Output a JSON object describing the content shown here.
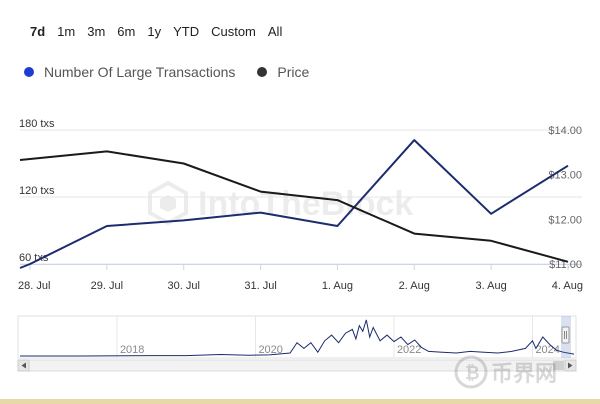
{
  "range_selector": {
    "buttons": [
      {
        "label": "7d",
        "active": true
      },
      {
        "label": "1m",
        "active": false
      },
      {
        "label": "3m",
        "active": false
      },
      {
        "label": "6m",
        "active": false
      },
      {
        "label": "1y",
        "active": false
      },
      {
        "label": "YTD",
        "active": false
      },
      {
        "label": "Custom",
        "active": false
      },
      {
        "label": "All",
        "active": false
      }
    ]
  },
  "legend": {
    "items": [
      {
        "label": "Number Of Large Transactions",
        "color": "#1f3bd1"
      },
      {
        "label": "Price",
        "color": "#333333"
      }
    ]
  },
  "watermark": "IntoTheBlock",
  "corner_watermark": "币界网",
  "chart_data": {
    "type": "line",
    "categories": [
      "28. Jul",
      "29. Jul",
      "30. Jul",
      "31. Jul",
      "1. Aug",
      "2. Aug",
      "3. Aug",
      "4. Aug"
    ],
    "series": [
      {
        "name": "Number Of Large Transactions",
        "axis": "left",
        "color": "#1c2c6e",
        "values": [
          60,
          94,
          99,
          106,
          94,
          171,
          105,
          148
        ]
      },
      {
        "name": "Price",
        "axis": "right",
        "color": "#1a1a1a",
        "values": [
          13.35,
          13.52,
          13.25,
          12.62,
          12.43,
          11.68,
          11.52,
          11.05
        ]
      }
    ],
    "y_left": {
      "ticks": [
        "60 txs",
        "120 txs",
        "180 txs"
      ],
      "tick_values": [
        60,
        120,
        180
      ],
      "range": [
        60,
        180
      ]
    },
    "y_right": {
      "ticks": [
        "$11.00",
        "$12.00",
        "$13.00",
        "$14.00"
      ],
      "tick_values": [
        11,
        12,
        13,
        14
      ],
      "range": [
        11,
        14
      ]
    },
    "navigator": {
      "year_labels": [
        "2018",
        "2020",
        "2022",
        "2024"
      ],
      "year_positions": [
        2018,
        2020,
        2022,
        2024
      ],
      "range": [
        2016.6,
        2024.6
      ],
      "series": [
        [
          2016.6,
          0.0
        ],
        [
          2017.5,
          0.0
        ],
        [
          2018.5,
          0.01
        ],
        [
          2019.0,
          0.01
        ],
        [
          2019.5,
          0.04
        ],
        [
          2019.9,
          0.02
        ],
        [
          2020.2,
          0.03
        ],
        [
          2020.5,
          0.08
        ],
        [
          2020.6,
          0.35
        ],
        [
          2020.7,
          0.2
        ],
        [
          2020.8,
          0.35
        ],
        [
          2020.9,
          0.1
        ],
        [
          2021.0,
          0.4
        ],
        [
          2021.1,
          0.55
        ],
        [
          2021.2,
          0.35
        ],
        [
          2021.3,
          0.6
        ],
        [
          2021.4,
          0.7
        ],
        [
          2021.45,
          0.45
        ],
        [
          2021.5,
          0.8
        ],
        [
          2021.55,
          0.65
        ],
        [
          2021.6,
          0.95
        ],
        [
          2021.65,
          0.5
        ],
        [
          2021.7,
          0.75
        ],
        [
          2021.8,
          0.4
        ],
        [
          2021.9,
          0.55
        ],
        [
          2022.0,
          0.38
        ],
        [
          2022.1,
          0.5
        ],
        [
          2022.2,
          0.3
        ],
        [
          2022.3,
          0.42
        ],
        [
          2022.4,
          0.22
        ],
        [
          2022.5,
          0.12
        ],
        [
          2022.7,
          0.1
        ],
        [
          2022.9,
          0.08
        ],
        [
          2023.1,
          0.12
        ],
        [
          2023.3,
          0.1
        ],
        [
          2023.5,
          0.08
        ],
        [
          2023.7,
          0.12
        ],
        [
          2023.9,
          0.2
        ],
        [
          2024.0,
          0.4
        ],
        [
          2024.05,
          0.2
        ],
        [
          2024.15,
          0.5
        ],
        [
          2024.25,
          0.3
        ],
        [
          2024.35,
          0.15
        ],
        [
          2024.45,
          0.1
        ],
        [
          2024.6,
          0.05
        ]
      ]
    }
  }
}
